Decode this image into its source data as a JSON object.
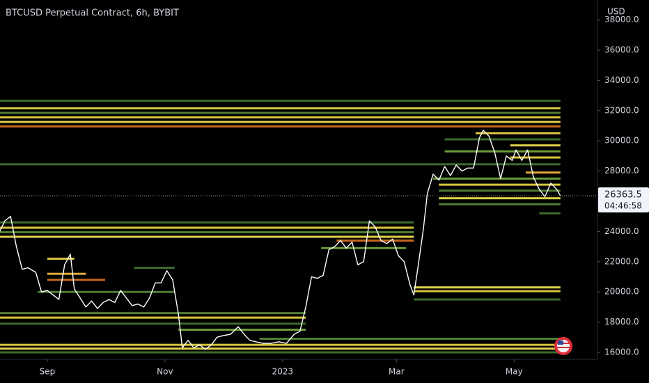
{
  "chart_data": {
    "type": "line",
    "title": "BTCUSD Perpetual Contract, 6h, BYBIT",
    "y_axis_label": "USD",
    "xlim": [
      -24.5,
      285.2
    ],
    "xticks": [
      {
        "value": 0,
        "label": "Sep"
      },
      {
        "value": 61,
        "label": "Nov"
      },
      {
        "value": 122,
        "label": "2023"
      },
      {
        "value": 181,
        "label": "Mar"
      },
      {
        "value": 242,
        "label": "May"
      }
    ],
    "ylim": [
      15540,
      39320
    ],
    "yticks": [
      {
        "value": 16000,
        "label": "16000.0"
      },
      {
        "value": 18000,
        "label": "18000.0"
      },
      {
        "value": 20000,
        "label": "20000.0"
      },
      {
        "value": 22000,
        "label": "22000.0"
      },
      {
        "value": 24000,
        "label": "24000.0"
      },
      {
        "value": 28000,
        "label": "28000.0"
      },
      {
        "value": 30000,
        "label": "30000.0"
      },
      {
        "value": 32000,
        "label": "32000.0"
      },
      {
        "value": 34000,
        "label": "34000.0"
      },
      {
        "value": 36000,
        "label": "36000.0"
      },
      {
        "value": 38000,
        "label": "38000.0"
      }
    ],
    "last_price": 26363.5,
    "countdown": "04:46:58",
    "series": [
      {
        "color": "#ffffff",
        "x": [
          -25,
          -22,
          -19,
          -16,
          -13,
          -10,
          -6,
          -3,
          0,
          3,
          6,
          9,
          12,
          14,
          17,
          20,
          23,
          26,
          29,
          32,
          35,
          38,
          41,
          44,
          47,
          50,
          53,
          56,
          59,
          62,
          65,
          68,
          70,
          73,
          76,
          79,
          82,
          85,
          88,
          91,
          95,
          99,
          102,
          105,
          108,
          112,
          116,
          120,
          124,
          128,
          131,
          134,
          137,
          140,
          143,
          146,
          149,
          152,
          155,
          158,
          161,
          164,
          167,
          170,
          173,
          176,
          179,
          182,
          185,
          188,
          190,
          192,
          195,
          197,
          200,
          203,
          206,
          209,
          212,
          215,
          218,
          221,
          224,
          226,
          229,
          232,
          235,
          238,
          241,
          243,
          246,
          249,
          252,
          255,
          258,
          261,
          264,
          266
        ],
        "values": [
          23900,
          24700,
          25000,
          23000,
          21500,
          21600,
          21300,
          20000,
          20100,
          19800,
          19500,
          21800,
          22500,
          20200,
          19600,
          19000,
          19400,
          18900,
          19300,
          19500,
          19300,
          20100,
          19600,
          19100,
          19200,
          19000,
          19600,
          20600,
          20600,
          21400,
          20800,
          18500,
          16300,
          16800,
          16300,
          16500,
          16200,
          16500,
          17000,
          17100,
          17200,
          17700,
          17200,
          16800,
          16700,
          16600,
          16600,
          16700,
          16600,
          17200,
          17400,
          19000,
          21000,
          20900,
          21100,
          22800,
          23000,
          23400,
          22900,
          23300,
          21800,
          22000,
          24700,
          24300,
          23400,
          23200,
          23500,
          22400,
          22000,
          20500,
          19800,
          21500,
          24200,
          26500,
          27800,
          27400,
          28300,
          27700,
          28400,
          28000,
          28200,
          28200,
          30200,
          30700,
          30300,
          29200,
          27500,
          29000,
          28700,
          29400,
          28700,
          29400,
          27600,
          26800,
          26300,
          27200,
          26800,
          26363.5
        ]
      }
    ],
    "levels": [
      {
        "price": 32650,
        "from": -25,
        "to": 266,
        "color": "#3d6b2e"
      },
      {
        "price": 32150,
        "from": -25,
        "to": 266,
        "color": "#d8c43c"
      },
      {
        "price": 31850,
        "from": -25,
        "to": 266,
        "color": "#4f7d32"
      },
      {
        "price": 31550,
        "from": -25,
        "to": 266,
        "color": "#d8c43c"
      },
      {
        "price": 31250,
        "from": -25,
        "to": 266,
        "color": "#e0cf4a"
      },
      {
        "price": 30950,
        "from": -25,
        "to": 266,
        "color": "#c7661d"
      },
      {
        "price": 30500,
        "from": 222,
        "to": 266,
        "color": "#d8c43c"
      },
      {
        "price": 30100,
        "from": 206,
        "to": 266,
        "color": "#3d6b2e"
      },
      {
        "price": 29700,
        "from": 240,
        "to": 266,
        "color": "#e0cf4a"
      },
      {
        "price": 29300,
        "from": 206,
        "to": 266,
        "color": "#6a9a3a"
      },
      {
        "price": 28900,
        "from": 240,
        "to": 266,
        "color": "#d8c43c"
      },
      {
        "price": 28450,
        "from": -25,
        "to": 266,
        "color": "#3d6b2e"
      },
      {
        "price": 27900,
        "from": 248,
        "to": 266,
        "color": "#e0a83a"
      },
      {
        "price": 27500,
        "from": 200,
        "to": 266,
        "color": "#6a9a3a"
      },
      {
        "price": 27100,
        "from": 203,
        "to": 266,
        "color": "#d8c43c"
      },
      {
        "price": 26700,
        "from": 203,
        "to": 266,
        "color": "#4f7d32"
      },
      {
        "price": 26200,
        "from": 203,
        "to": 266,
        "color": "#e0cf4a"
      },
      {
        "price": 25800,
        "from": 203,
        "to": 266,
        "color": "#4f7d32"
      },
      {
        "price": 25200,
        "from": 255,
        "to": 266,
        "color": "#3d6b2e"
      },
      {
        "price": 24600,
        "from": -25,
        "to": 190,
        "color": "#3d6b2e"
      },
      {
        "price": 24250,
        "from": -25,
        "to": 190,
        "color": "#d8c43c"
      },
      {
        "price": 23950,
        "from": -25,
        "to": 190,
        "color": "#4f7d32"
      },
      {
        "price": 23650,
        "from": -25,
        "to": 190,
        "color": "#e0cf4a"
      },
      {
        "price": 23400,
        "from": 150,
        "to": 190,
        "color": "#c7661d"
      },
      {
        "price": 22900,
        "from": 142,
        "to": 186,
        "color": "#6a9a3a"
      },
      {
        "price": 22200,
        "from": 0,
        "to": 14,
        "color": "#d8c43c"
      },
      {
        "price": 21600,
        "from": 45,
        "to": 66,
        "color": "#3d6b2e"
      },
      {
        "price": 21200,
        "from": 0,
        "to": 20,
        "color": "#e0a83a"
      },
      {
        "price": 20800,
        "from": 0,
        "to": 30,
        "color": "#c7661d"
      },
      {
        "price": 20300,
        "from": 190,
        "to": 266,
        "color": "#e0cf4a"
      },
      {
        "price": 20050,
        "from": 190,
        "to": 266,
        "color": "#d8c43c"
      },
      {
        "price": 20000,
        "from": -5,
        "to": 66,
        "color": "#4f7d32"
      },
      {
        "price": 19500,
        "from": 190,
        "to": 266,
        "color": "#3d6b2e"
      },
      {
        "price": 18600,
        "from": -25,
        "to": 134,
        "color": "#4f7d32"
      },
      {
        "price": 18300,
        "from": -25,
        "to": 134,
        "color": "#d8c43c"
      },
      {
        "price": 17900,
        "from": -25,
        "to": 134,
        "color": "#3d6b2e"
      },
      {
        "price": 17500,
        "from": 68,
        "to": 134,
        "color": "#6a9a3a"
      },
      {
        "price": 16900,
        "from": 110,
        "to": 266,
        "color": "#4f7d32"
      },
      {
        "price": 16500,
        "from": -25,
        "to": 266,
        "color": "#d8c43c"
      },
      {
        "price": 16250,
        "from": -25,
        "to": 266,
        "color": "#e0cf4a"
      },
      {
        "price": 16000,
        "from": -25,
        "to": 266,
        "color": "#3d6b2e"
      }
    ]
  }
}
